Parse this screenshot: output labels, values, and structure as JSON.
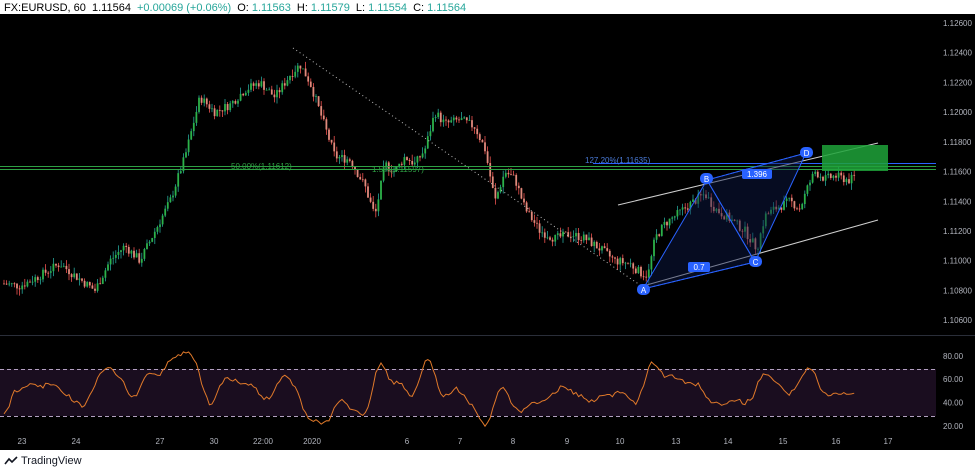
{
  "header": {
    "symbol": "FX:EURUSD, 60",
    "last": "1.11564",
    "change": "+0.00069 (+0.06%)",
    "open_label": "O:",
    "open": "1.11563",
    "high_label": "H:",
    "high": "1.11579",
    "low_label": "L:",
    "low": "1.11554",
    "close_label": "C:",
    "close": "1.11564"
  },
  "footer": {
    "brand": "TradingView"
  },
  "colors": {
    "bg": "#000000",
    "up": "#26a69a",
    "up_fill": "#2cb24a",
    "down": "#ef5350",
    "down_fill": "#e08a7c",
    "rsi_line": "#e0792a",
    "rsi_band": "#1a0d1f",
    "fib": "#2ea043",
    "pattern": "#2962ff",
    "target_box": "#1fa33a"
  },
  "chart_data": {
    "type": "candlestick",
    "ylim": [
      1.105,
      1.1266
    ],
    "price_ticks": [
      "1.12600",
      "1.12400",
      "1.12200",
      "1.12000",
      "1.11800",
      "1.11600",
      "1.11400",
      "1.11200",
      "1.11000",
      "1.10800",
      "1.10600"
    ],
    "x_ticks": [
      "23",
      "24",
      "27",
      "30",
      "22:00",
      "2020",
      "6",
      "7",
      "8",
      "9",
      "10",
      "13",
      "14",
      "15",
      "16",
      "17"
    ],
    "anchor_path": [
      [
        0,
        1.1085
      ],
      [
        20,
        1.1083
      ],
      [
        40,
        1.109
      ],
      [
        60,
        1.1098
      ],
      [
        75,
        1.109
      ],
      [
        95,
        1.108
      ],
      [
        110,
        1.11
      ],
      [
        125,
        1.111
      ],
      [
        140,
        1.11
      ],
      [
        155,
        1.112
      ],
      [
        170,
        1.114
      ],
      [
        185,
        1.117
      ],
      [
        200,
        1.121
      ],
      [
        215,
        1.12
      ],
      [
        230,
        1.1205
      ],
      [
        245,
        1.1215
      ],
      [
        260,
        1.122
      ],
      [
        275,
        1.121
      ],
      [
        290,
        1.1225
      ],
      [
        300,
        1.1232
      ],
      [
        310,
        1.122
      ],
      [
        320,
        1.12
      ],
      [
        335,
        1.117
      ],
      [
        350,
        1.1168
      ],
      [
        365,
        1.115
      ],
      [
        375,
        1.113
      ],
      [
        385,
        1.1165
      ],
      [
        395,
        1.116
      ],
      [
        405,
        1.117
      ],
      [
        415,
        1.1165
      ],
      [
        425,
        1.1175
      ],
      [
        435,
        1.12
      ],
      [
        445,
        1.1192
      ],
      [
        460,
        1.1195
      ],
      [
        475,
        1.119
      ],
      [
        485,
        1.1175
      ],
      [
        495,
        1.114
      ],
      [
        505,
        1.116
      ],
      [
        515,
        1.1155
      ],
      [
        525,
        1.1135
      ],
      [
        540,
        1.112
      ],
      [
        555,
        1.1115
      ],
      [
        570,
        1.1118
      ],
      [
        585,
        1.1115
      ],
      [
        600,
        1.1108
      ],
      [
        615,
        1.11
      ],
      [
        630,
        1.1098
      ],
      [
        640,
        1.1092
      ],
      [
        648,
        1.109
      ],
      [
        655,
        1.1115
      ],
      [
        665,
        1.1125
      ],
      [
        675,
        1.113
      ],
      [
        690,
        1.1138
      ],
      [
        705,
        1.1145
      ],
      [
        715,
        1.1135
      ],
      [
        730,
        1.1128
      ],
      [
        745,
        1.112
      ],
      [
        757,
        1.1108
      ],
      [
        765,
        1.113
      ],
      [
        775,
        1.1135
      ],
      [
        790,
        1.114
      ],
      [
        800,
        1.1135
      ],
      [
        808,
        1.115
      ],
      [
        815,
        1.116
      ],
      [
        825,
        1.1155
      ],
      [
        835,
        1.1157
      ],
      [
        850,
        1.1154
      ],
      [
        855,
        1.1157
      ]
    ],
    "rsi": {
      "ylim": [
        13,
        97
      ],
      "ticks": [
        "80.00",
        "60.00",
        "40.00",
        "20.00"
      ],
      "band": [
        30,
        70
      ]
    },
    "fib_label": "50.00%(1.11612)",
    "fib_label2": "1.5%(1.11597)",
    "ext_label": "127.20%(1.11635)",
    "pattern_points": {
      "A": "A",
      "B": "B",
      "C": "C",
      "D": "D"
    },
    "ratios": {
      "ab_bd": "1.396",
      "ac": "0.7"
    }
  }
}
